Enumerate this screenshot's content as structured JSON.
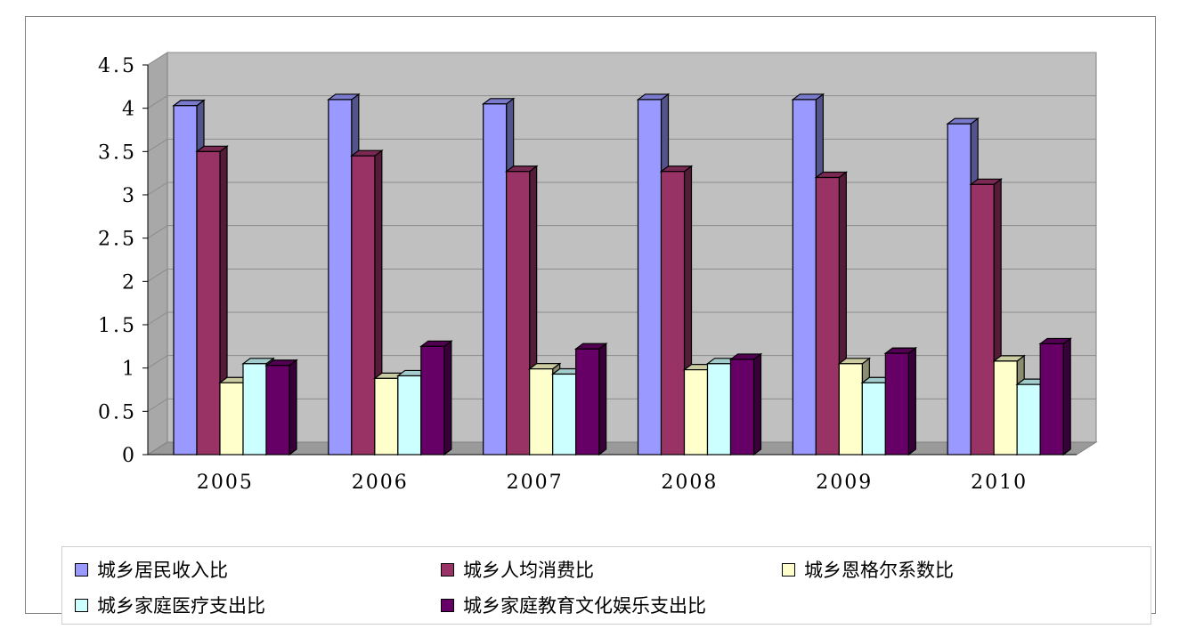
{
  "chart_data": {
    "type": "bar",
    "categories": [
      "2005",
      "2006",
      "2007",
      "2008",
      "2009",
      "2010"
    ],
    "series": [
      {
        "name": "城乡居民收入比",
        "color": "#9999ff",
        "values": [
          4.03,
          4.1,
          4.05,
          4.1,
          4.1,
          3.82
        ]
      },
      {
        "name": "城乡人均消费比",
        "color": "#993366",
        "values": [
          3.5,
          3.45,
          3.27,
          3.27,
          3.2,
          3.12
        ]
      },
      {
        "name": "城乡恩格尔系数比",
        "color": "#ffffcc",
        "values": [
          0.83,
          0.88,
          0.99,
          0.98,
          1.05,
          1.08
        ]
      },
      {
        "name": "城乡家庭医疗支出比",
        "color": "#ccffff",
        "values": [
          1.05,
          0.91,
          0.93,
          1.05,
          0.83,
          0.81
        ]
      },
      {
        "name": "城乡家庭教育文化娱乐支出比",
        "color": "#660066",
        "values": [
          1.03,
          1.25,
          1.22,
          1.1,
          1.17,
          1.28
        ]
      }
    ],
    "y_ticks": [
      "0",
      "0.5",
      "1",
      "1.5",
      "2",
      "2.5",
      "3",
      "3.5",
      "4",
      "4.5"
    ],
    "ylim": [
      0,
      4.5
    ],
    "grid": true,
    "legend_position": "bottom",
    "title": "",
    "xlabel": "",
    "ylabel": ""
  }
}
